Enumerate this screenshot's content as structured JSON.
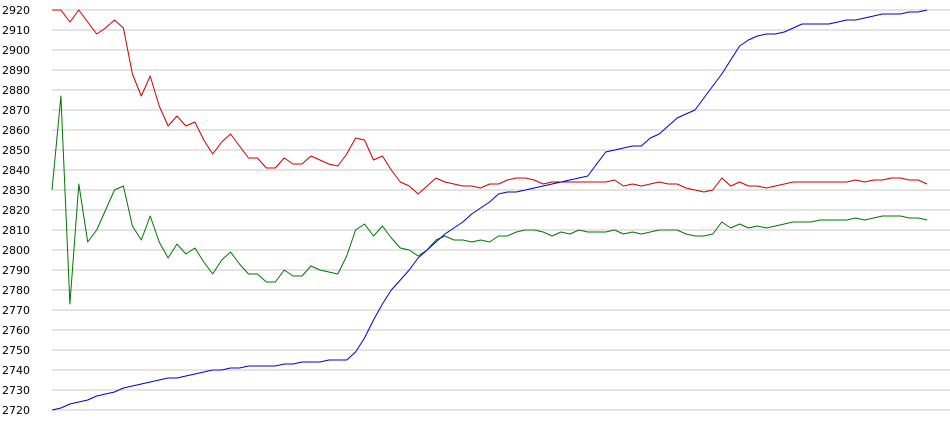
{
  "chart_data": {
    "type": "line",
    "title": "",
    "xlabel": "",
    "ylabel": "",
    "ylim": [
      2720,
      2920
    ],
    "xlim": [
      0,
      100
    ],
    "grid": true,
    "yticks": [
      2720,
      2730,
      2740,
      2750,
      2760,
      2770,
      2780,
      2790,
      2800,
      2810,
      2820,
      2830,
      2840,
      2850,
      2860,
      2870,
      2880,
      2890,
      2900,
      2910,
      2920
    ],
    "series": [
      {
        "color": "#cc0000",
        "values": [
          2920,
          2920,
          2914,
          2920,
          2914,
          2908,
          2911,
          2915,
          2911,
          2888,
          2877,
          2887,
          2872,
          2862,
          2867,
          2862,
          2864,
          2855,
          2848,
          2854,
          2858,
          2852,
          2846,
          2846,
          2841,
          2841,
          2846,
          2843,
          2843,
          2847,
          2845,
          2843,
          2842,
          2848,
          2856,
          2855,
          2845,
          2847,
          2840,
          2834,
          2832,
          2828,
          2832,
          2836,
          2834,
          2833,
          2832,
          2832,
          2831,
          2833,
          2833,
          2835,
          2836,
          2836,
          2835,
          2833,
          2834,
          2834,
          2834,
          2834,
          2834,
          2834,
          2834,
          2835,
          2832,
          2833,
          2832,
          2833,
          2834,
          2833,
          2833,
          2831,
          2830,
          2829,
          2830,
          2836,
          2832,
          2834,
          2832,
          2832,
          2831,
          2832,
          2833,
          2834,
          2834,
          2834,
          2834,
          2834,
          2834,
          2834,
          2835,
          2834,
          2835,
          2835,
          2836,
          2836,
          2835,
          2835,
          2833
        ]
      },
      {
        "color": "#007700",
        "values": [
          2830,
          2877,
          2773,
          2833,
          2804,
          2810,
          2820,
          2830,
          2832,
          2812,
          2805,
          2817,
          2804,
          2796,
          2803,
          2798,
          2801,
          2794,
          2788,
          2795,
          2799,
          2793,
          2788,
          2788,
          2784,
          2784,
          2790,
          2787,
          2787,
          2792,
          2790,
          2789,
          2788,
          2797,
          2810,
          2813,
          2807,
          2812,
          2806,
          2801,
          2800,
          2797,
          2800,
          2805,
          2807,
          2805,
          2805,
          2804,
          2805,
          2804,
          2807,
          2807,
          2809,
          2810,
          2810,
          2809,
          2807,
          2809,
          2808,
          2810,
          2809,
          2809,
          2809,
          2810,
          2808,
          2809,
          2808,
          2809,
          2810,
          2810,
          2810,
          2808,
          2807,
          2807,
          2808,
          2814,
          2811,
          2813,
          2811,
          2812,
          2811,
          2812,
          2813,
          2814,
          2814,
          2814,
          2815,
          2815,
          2815,
          2815,
          2816,
          2815,
          2816,
          2817,
          2817,
          2817,
          2816,
          2816,
          2815
        ]
      },
      {
        "color": "#0000cc",
        "values": [
          2720,
          2721,
          2723,
          2724,
          2725,
          2727,
          2728,
          2729,
          2731,
          2732,
          2733,
          2734,
          2735,
          2736,
          2736,
          2737,
          2738,
          2739,
          2740,
          2740,
          2741,
          2741,
          2742,
          2742,
          2742,
          2742,
          2743,
          2743,
          2744,
          2744,
          2744,
          2745,
          2745,
          2745,
          2749,
          2756,
          2765,
          2773,
          2780,
          2785,
          2790,
          2796,
          2800,
          2804,
          2808,
          2811,
          2814,
          2818,
          2821,
          2824,
          2828,
          2829,
          2829,
          2830,
          2831,
          2832,
          2833,
          2834,
          2835,
          2836,
          2837,
          2843,
          2849,
          2850,
          2851,
          2852,
          2852,
          2856,
          2858,
          2862,
          2866,
          2868,
          2870,
          2876,
          2882,
          2888,
          2895,
          2902,
          2905,
          2907,
          2908,
          2908,
          2909,
          2911,
          2913,
          2913,
          2913,
          2913,
          2914,
          2915,
          2915,
          2916,
          2917,
          2918,
          2918,
          2918,
          2919,
          2919,
          2920
        ]
      }
    ]
  }
}
